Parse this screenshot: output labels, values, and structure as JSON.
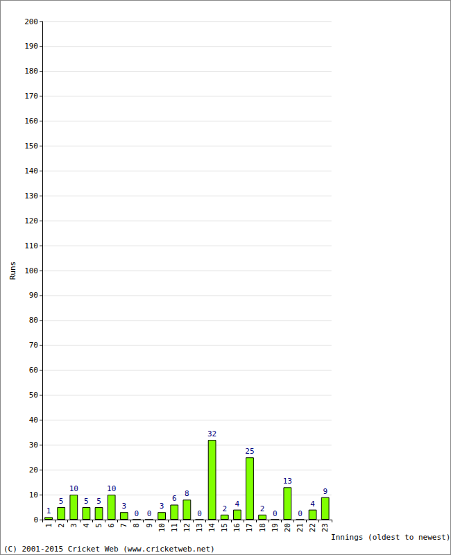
{
  "chart_data": {
    "type": "bar",
    "x_label": "Innings (oldest to newest)",
    "y_label": "Runs",
    "annotation": "(C) 2001-2015 Cricket Web (www.cricketweb.net)",
    "categories": [
      "1",
      "2",
      "3",
      "4",
      "5",
      "6",
      "7",
      "8",
      "9",
      "10",
      "11",
      "12",
      "13",
      "14",
      "15",
      "16",
      "17",
      "18",
      "19",
      "20",
      "21",
      "22",
      "23"
    ],
    "values": [
      1,
      5,
      10,
      5,
      5,
      10,
      3,
      0,
      0,
      3,
      6,
      8,
      0,
      32,
      2,
      4,
      25,
      2,
      0,
      13,
      0,
      4,
      9
    ],
    "color": "#80ff00",
    "ylim": [
      0,
      200
    ],
    "yticks": [
      0,
      10,
      20,
      30,
      40,
      50,
      60,
      70,
      80,
      90,
      100,
      110,
      120,
      130,
      140,
      150,
      160,
      170,
      180,
      190,
      200
    ],
    "grid": true,
    "data_labels": true
  }
}
